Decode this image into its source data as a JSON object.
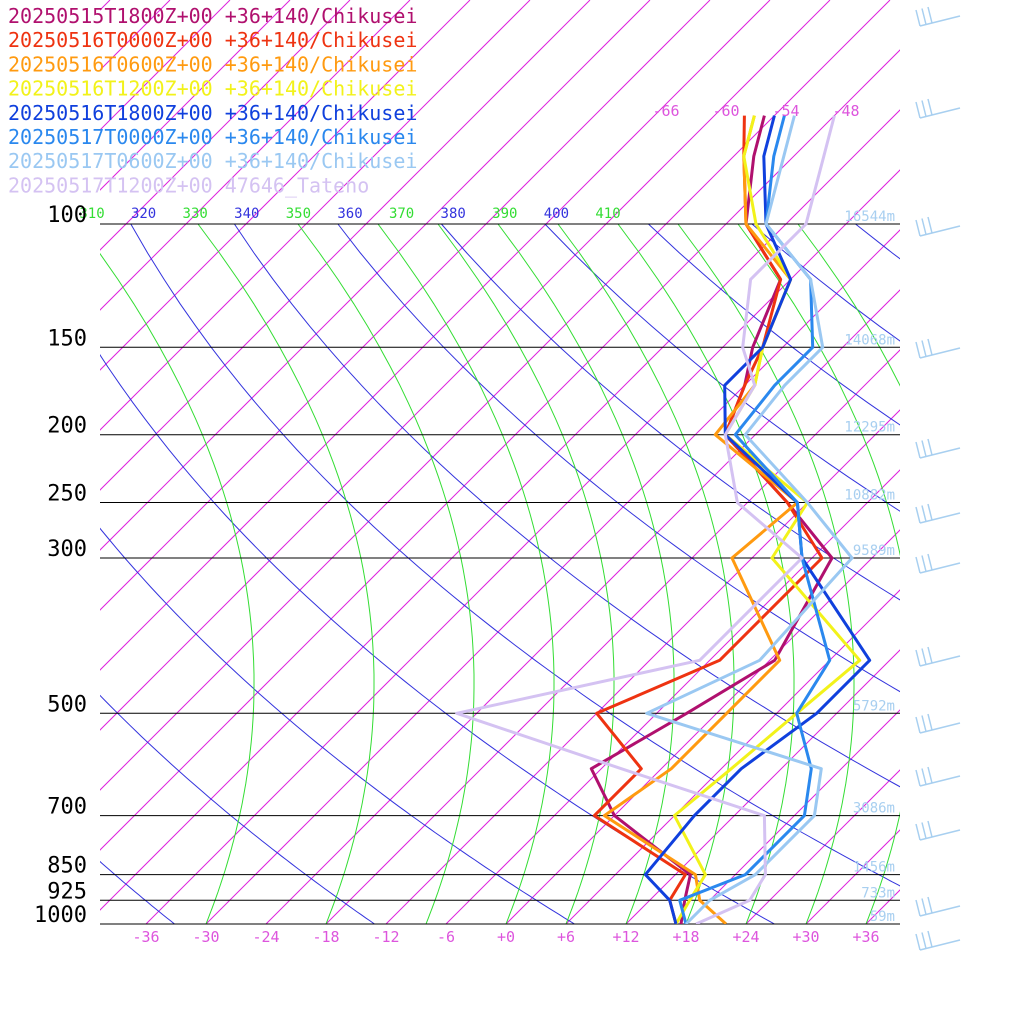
{
  "chart_data": {
    "type": "line",
    "diagram": "skew-T log-P",
    "legend_placement": "top-left",
    "legend": [
      {
        "label": "20250515T1800Z+00 +36+140/Chikusei",
        "color": "#b0106e"
      },
      {
        "label": "20250516T0000Z+00 +36+140/Chikusei",
        "color": "#ee3311"
      },
      {
        "label": "20250516T0600Z+00 +36+140/Chikusei",
        "color": "#ff9a10"
      },
      {
        "label": "20250516T1200Z+00 +36+140/Chikusei",
        "color": "#f2f21a"
      },
      {
        "label": "20250516T1800Z+00 +36+140/Chikusei",
        "color": "#1040dd"
      },
      {
        "label": "20250517T0000Z+00 +36+140/Chikusei",
        "color": "#2a88ee"
      },
      {
        "label": "20250517T0600Z+00 +36+140/Chikusei",
        "color": "#9ac8f2"
      },
      {
        "label": "20250517T1200Z+00 47646_Tateno",
        "color": "#d4c2f2"
      }
    ],
    "pressure_levels": [
      {
        "label": "100",
        "p": 100,
        "height": "16544m"
      },
      {
        "label": "150",
        "p": 150,
        "height": "14068m"
      },
      {
        "label": "200",
        "p": 200,
        "height": "12295m"
      },
      {
        "label": "250",
        "p": 250,
        "height": "10882m"
      },
      {
        "label": "300",
        "p": 300,
        "height": "9589m"
      },
      {
        "label": "500",
        "p": 500,
        "height": "5792m"
      },
      {
        "label": "700",
        "p": 700,
        "height": "3086m"
      },
      {
        "label": "850",
        "p": 850,
        "height": "1456m"
      },
      {
        "label": "925",
        "p": 925,
        "height": "733m"
      },
      {
        "label": "1000",
        "p": 1000,
        "height": "59m"
      }
    ],
    "x_ticks": [
      {
        "label": "-36",
        "t": -36
      },
      {
        "label": "-30",
        "t": -30
      },
      {
        "label": "-24",
        "t": -24
      },
      {
        "label": "-18",
        "t": -18
      },
      {
        "label": "-12",
        "t": -12
      },
      {
        "label": "-6",
        "t": -6
      },
      {
        "label": "+0",
        "t": 0
      },
      {
        "label": "+6",
        "t": 6
      },
      {
        "label": "+12",
        "t": 12
      },
      {
        "label": "+18",
        "t": 18
      },
      {
        "label": "+24",
        "t": 24
      },
      {
        "label": "+30",
        "t": 30
      },
      {
        "label": "+36",
        "t": 36
      }
    ],
    "upper_ticks": [
      {
        "label": "-66",
        "t": -66
      },
      {
        "label": "-60",
        "t": -60
      },
      {
        "label": "-54",
        "t": -54
      },
      {
        "label": "-48",
        "t": -48
      }
    ],
    "theta_labels": [
      {
        "label": "310",
        "kind": "e"
      },
      {
        "label": "320",
        "kind": "d"
      },
      {
        "label": "330",
        "kind": "e"
      },
      {
        "label": "340",
        "kind": "d"
      },
      {
        "label": "350",
        "kind": "e"
      },
      {
        "label": "360",
        "kind": "d"
      },
      {
        "label": "370",
        "kind": "e"
      },
      {
        "label": "380",
        "kind": "d"
      },
      {
        "label": "390",
        "kind": "e"
      },
      {
        "label": "400",
        "kind": "d"
      },
      {
        "label": "410",
        "kind": "e"
      }
    ],
    "colors": {
      "isobar": "#000000",
      "isotherm": "#dd22dd",
      "dry_adiabat": "#3333dd",
      "moist_adiabat": "#33dd33",
      "tick_text": "#dd55dd",
      "height_text": "#a8cff0",
      "wind_barb": "#a8cff0",
      "pressure_text": "#000000"
    },
    "series": [
      {
        "name": "20250515T1800Z+00 +36+140/Chikusei",
        "color": "#b0106e",
        "points": [
          [
            1000,
            17.5
          ],
          [
            925,
            15.5
          ],
          [
            850,
            13.5
          ],
          [
            700,
            0
          ],
          [
            600,
            -7
          ],
          [
            500,
            -3
          ],
          [
            420,
            0.5
          ],
          [
            300,
            -4
          ],
          [
            250,
            -14
          ],
          [
            200,
            -27
          ],
          [
            170,
            -30
          ],
          [
            150,
            -33
          ],
          [
            120,
            -37
          ],
          [
            100,
            -46
          ],
          [
            80,
            -52
          ],
          [
            70,
            -55
          ]
        ]
      },
      {
        "name": "20250516T0000Z+00 +36+140/Chikusei",
        "color": "#ee3311",
        "points": [
          [
            1000,
            17
          ],
          [
            925,
            14
          ],
          [
            850,
            13
          ],
          [
            700,
            -2
          ],
          [
            600,
            -2
          ],
          [
            500,
            -12
          ],
          [
            420,
            -5
          ],
          [
            300,
            -5
          ],
          [
            250,
            -14
          ],
          [
            200,
            -27
          ],
          [
            170,
            -30
          ],
          [
            150,
            -32
          ],
          [
            120,
            -37
          ],
          [
            100,
            -46
          ],
          [
            80,
            -53
          ],
          [
            70,
            -57
          ]
        ]
      },
      {
        "name": "20250516T0600Z+00 +36+140/Chikusei",
        "color": "#ff9a10",
        "points": [
          [
            1000,
            22
          ],
          [
            925,
            17
          ],
          [
            850,
            14
          ],
          [
            700,
            -1
          ],
          [
            600,
            1
          ],
          [
            500,
            1
          ],
          [
            420,
            1
          ],
          [
            300,
            -14
          ],
          [
            250,
            -13
          ],
          [
            200,
            -28
          ],
          [
            170,
            -29
          ],
          [
            150,
            -32
          ],
          [
            120,
            -36
          ],
          [
            100,
            -46
          ],
          [
            80,
            -53
          ],
          [
            70,
            -56
          ]
        ]
      },
      {
        "name": "20250516T1200Z+00 +36+140/Chikusei",
        "color": "#f2f21a",
        "points": [
          [
            1000,
            17
          ],
          [
            925,
            16
          ],
          [
            850,
            15
          ],
          [
            700,
            6
          ],
          [
            600,
            7
          ],
          [
            500,
            8
          ],
          [
            420,
            9
          ],
          [
            300,
            -10
          ],
          [
            250,
            -12
          ],
          [
            200,
            -27
          ],
          [
            170,
            -29
          ],
          [
            150,
            -32
          ],
          [
            120,
            -36
          ],
          [
            100,
            -45
          ],
          [
            80,
            -53
          ],
          [
            70,
            -56
          ]
        ]
      },
      {
        "name": "20250516T1800Z+00 +36+140/Chikusei",
        "color": "#1040dd",
        "points": [
          [
            1000,
            17
          ],
          [
            925,
            14
          ],
          [
            850,
            9
          ],
          [
            700,
            8
          ],
          [
            600,
            8
          ],
          [
            500,
            10
          ],
          [
            420,
            10
          ],
          [
            300,
            -7
          ],
          [
            250,
            -13
          ],
          [
            200,
            -27
          ],
          [
            170,
            -32
          ],
          [
            150,
            -32
          ],
          [
            120,
            -36
          ],
          [
            100,
            -44
          ],
          [
            80,
            -51
          ],
          [
            70,
            -54
          ]
        ]
      },
      {
        "name": "20250517T0000Z+00 +36+140/Chikusei",
        "color": "#2a88ee",
        "points": [
          [
            1000,
            18
          ],
          [
            925,
            15
          ],
          [
            850,
            19
          ],
          [
            700,
            19
          ],
          [
            600,
            15
          ],
          [
            500,
            8
          ],
          [
            420,
            6
          ],
          [
            300,
            -7
          ],
          [
            250,
            -13
          ],
          [
            200,
            -26
          ],
          [
            170,
            -27
          ],
          [
            150,
            -27
          ],
          [
            120,
            -34
          ],
          [
            100,
            -44
          ],
          [
            80,
            -50
          ],
          [
            70,
            -53
          ]
        ]
      },
      {
        "name": "20250517T0600Z+00 +36+140/Chikusei",
        "color": "#9ac8f2",
        "points": [
          [
            1000,
            18
          ],
          [
            925,
            18
          ],
          [
            850,
            20
          ],
          [
            700,
            20
          ],
          [
            600,
            16
          ],
          [
            500,
            -7
          ],
          [
            420,
            -1
          ],
          [
            300,
            -2
          ],
          [
            250,
            -12
          ],
          [
            200,
            -25
          ],
          [
            170,
            -26
          ],
          [
            150,
            -26
          ],
          [
            120,
            -34
          ],
          [
            100,
            -44
          ],
          [
            80,
            -49
          ],
          [
            70,
            -52
          ]
        ]
      },
      {
        "name": "20250517T1200Z+00 47646_Tateno",
        "color": "#d4c2f2",
        "points": [
          [
            1000,
            19
          ],
          [
            925,
            22
          ],
          [
            850,
            21
          ],
          [
            700,
            15
          ],
          [
            600,
            -4
          ],
          [
            500,
            -26
          ],
          [
            420,
            -7
          ],
          [
            300,
            -7
          ],
          [
            250,
            -19
          ],
          [
            200,
            -27
          ],
          [
            170,
            -29
          ],
          [
            150,
            -34
          ],
          [
            120,
            -40
          ],
          [
            100,
            -40
          ],
          [
            80,
            -45
          ],
          [
            70,
            -48
          ]
        ]
      }
    ],
    "x_range": [
      -40,
      40
    ],
    "p_range": [
      1000,
      100
    ],
    "grid": true,
    "skew_deg": 45
  }
}
